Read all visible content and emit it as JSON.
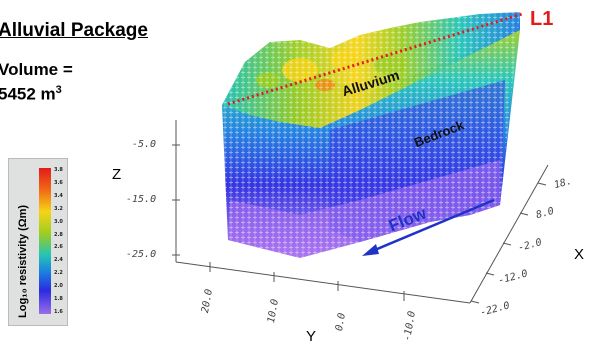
{
  "title": "Alluvial Package",
  "volume_line1": "Volume =",
  "volume_value": "5452 m",
  "volume_sup": "3",
  "line_label": "L1",
  "layers": {
    "alluvium": "Alluvium",
    "bedrock": "Bedrock"
  },
  "flow_label": "Flow",
  "axes": {
    "z_label": "Z",
    "x_label": "X",
    "y_label": "Y",
    "z_ticks": [
      "-5.0",
      "-15.0",
      "-25.0"
    ],
    "x_ticks": [
      "18.",
      "8.0",
      "-2.0",
      "-12.0",
      "-22.0"
    ],
    "y_ticks": [
      "20.0",
      "10.0",
      "0.0",
      "-10.0"
    ]
  },
  "colorbar": {
    "title": "Log₁₀ resistivity (Ωm)",
    "ticks": [
      "3.8",
      "3.6",
      "3.4",
      "3.2",
      "3.0",
      "2.8",
      "2.6",
      "2.4",
      "2.2",
      "2.0",
      "1.8",
      "1.6"
    ]
  },
  "colors": {
    "l1_line": "#e31b1b",
    "flow_arrow": "#1f33c8",
    "top_colors": [
      "#e21b1b",
      "#f7d416",
      "#9ccd22",
      "#22c3b8",
      "#1b7be0",
      "#2b2be0",
      "#9a6ee8"
    ]
  }
}
